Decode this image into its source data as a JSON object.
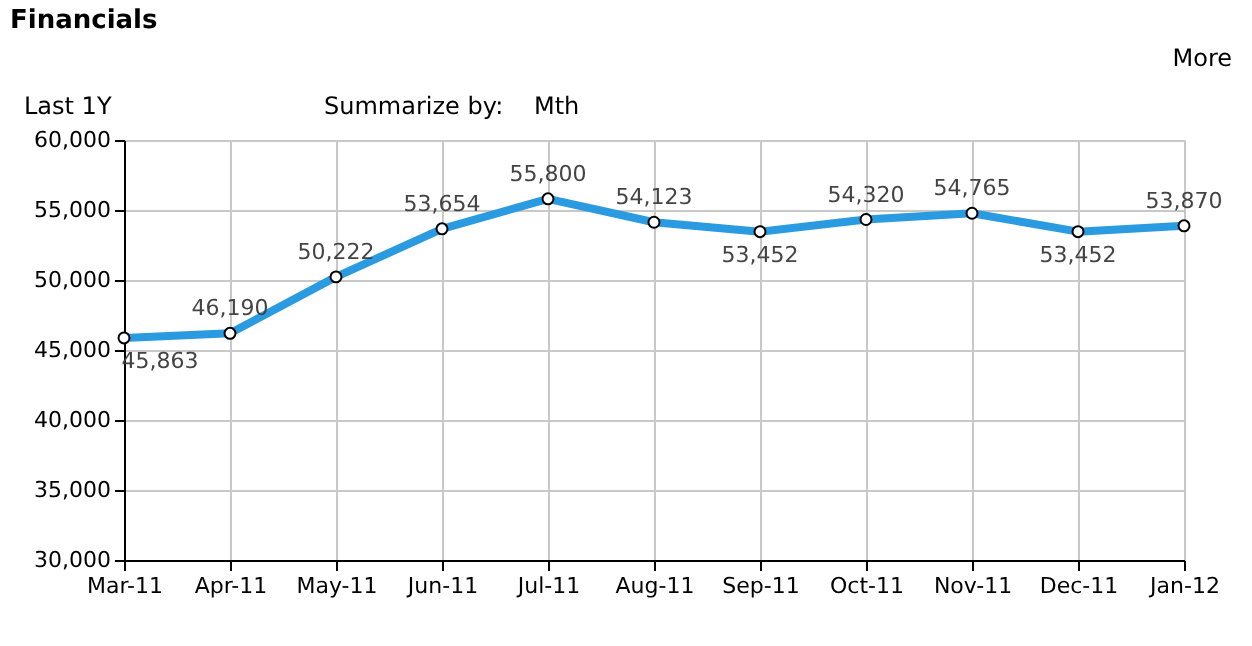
{
  "chart_data": {
    "type": "line",
    "title": "Financials",
    "annotations": [
      "More",
      "Last 1Y",
      "Summarize by:",
      "Mth"
    ],
    "categories": [
      "Mar-11",
      "Apr-11",
      "May-11",
      "Jun-11",
      "Jul-11",
      "Aug-11",
      "Sep-11",
      "Oct-11",
      "Nov-11",
      "Dec-11",
      "Jan-12"
    ],
    "series": [
      {
        "color": "#2a9be0",
        "values": [
          45863,
          46190,
          50222,
          53654,
          55800,
          54123,
          53452,
          54320,
          54765,
          53452,
          53870
        ],
        "value_labels": [
          "45,863",
          "46,190",
          "50,222",
          "53,654",
          "55,800",
          "54,123",
          "53,452",
          "54,320",
          "54,765",
          "53,452",
          "53,870"
        ]
      }
    ],
    "ylim": [
      30000,
      60000
    ],
    "yticks": [
      {
        "value": 30000,
        "label": "30,000"
      },
      {
        "value": 35000,
        "label": "35,000"
      },
      {
        "value": 40000,
        "label": "40,000"
      },
      {
        "value": 45000,
        "label": "45,000"
      },
      {
        "value": 50000,
        "label": "50,000"
      },
      {
        "value": 55000,
        "label": "55,000"
      },
      {
        "value": 60000,
        "label": "60,000"
      }
    ],
    "grid": true,
    "marker": "circle",
    "line_style": "solid"
  }
}
